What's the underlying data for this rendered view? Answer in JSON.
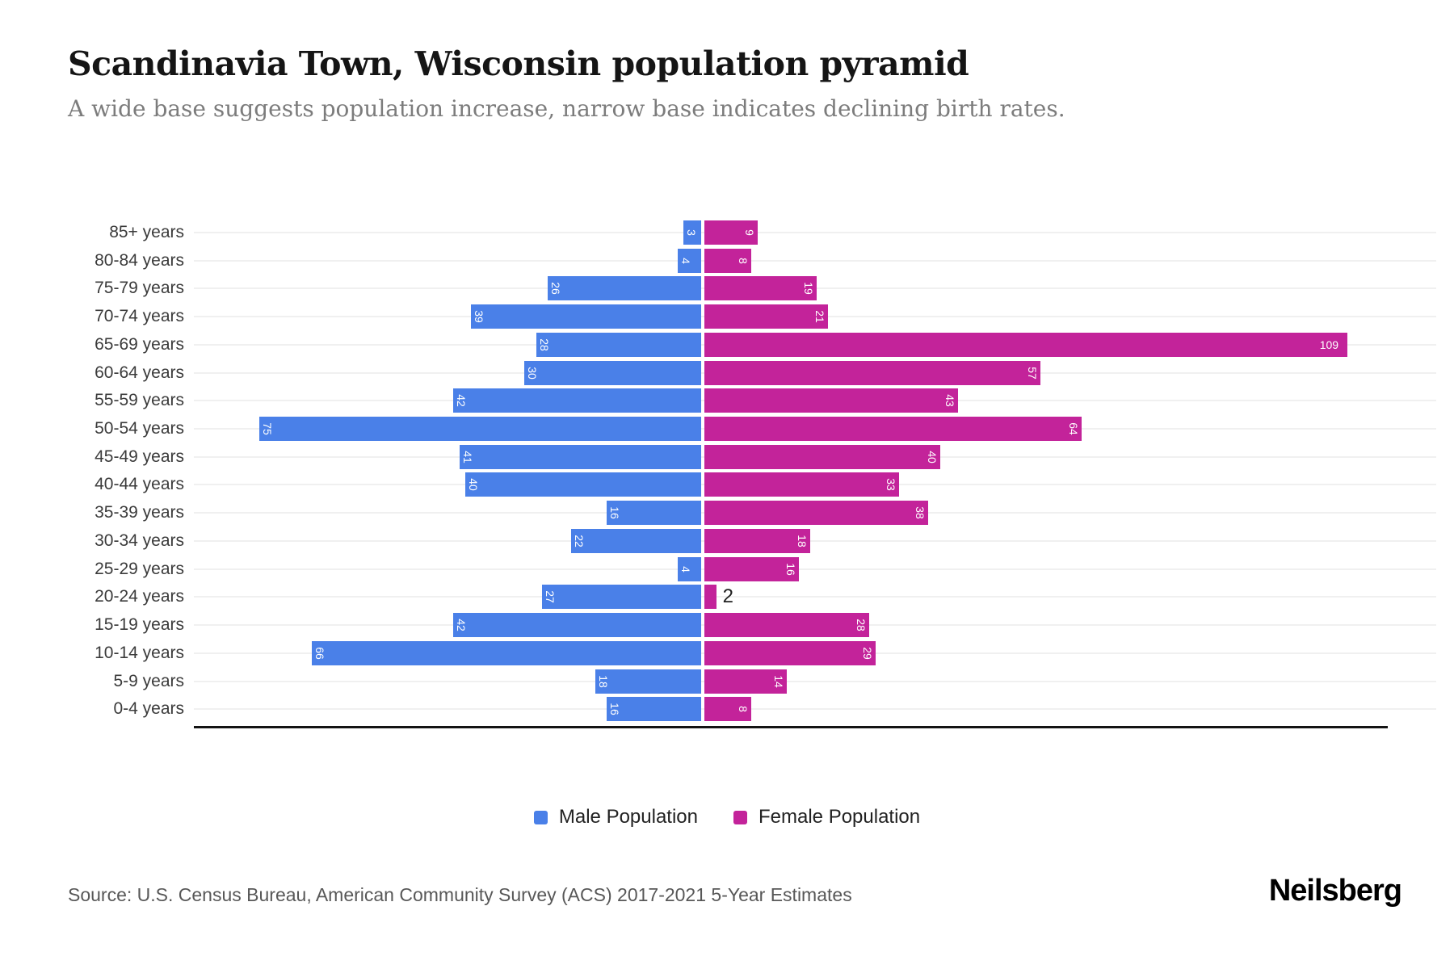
{
  "header": {
    "title": "Scandinavia Town, Wisconsin population pyramid",
    "subtitle": "A wide base suggests population increase, narrow base indicates declining birth rates."
  },
  "chart_data": {
    "type": "bar",
    "variant": "population-pyramid",
    "title": "Scandinavia Town, Wisconsin population pyramid",
    "subtitle": "A wide base suggests population increase, narrow base indicates declining birth rates.",
    "categories": [
      "85+ years",
      "80-84 years",
      "75-79 years",
      "70-74 years",
      "65-69 years",
      "60-64 years",
      "55-59 years",
      "50-54 years",
      "45-49 years",
      "40-44 years",
      "35-39 years",
      "30-34 years",
      "25-29 years",
      "20-24 years",
      "15-19 years",
      "10-14 years",
      "5-9 years",
      "0-4 years"
    ],
    "series": [
      {
        "name": "Male Population",
        "side": "left",
        "color": "#4A80E8",
        "values": [
          3,
          4,
          26,
          39,
          28,
          30,
          42,
          75,
          41,
          40,
          16,
          22,
          4,
          27,
          42,
          66,
          18,
          16
        ]
      },
      {
        "name": "Female Population",
        "side": "right",
        "color": "#C3239A",
        "values": [
          9,
          8,
          19,
          21,
          109,
          57,
          43,
          64,
          40,
          33,
          38,
          18,
          16,
          2,
          28,
          29,
          14,
          8
        ]
      }
    ],
    "grid": "horizontal-light",
    "legend_position": "bottom",
    "value_labels": "inside-bar-rotated, white"
  },
  "legend": {
    "male_label": "Male Population",
    "female_label": "Female Population"
  },
  "footer": {
    "source": "Source: U.S. Census Bureau, American Community Survey (ACS) 2017-2021 5-Year Estimates",
    "brand": "Neilsberg"
  },
  "colors": {
    "male": "#4A80E8",
    "female": "#C3239A",
    "gridline": "#f0f0f0",
    "axis": "#141414"
  }
}
